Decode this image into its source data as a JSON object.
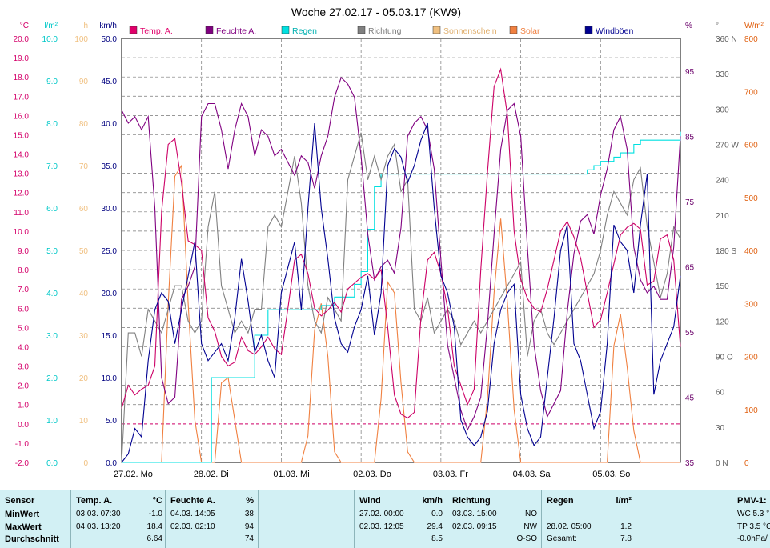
{
  "chart_data": {
    "type": "line",
    "title": "Woche 27.02.17 - 05.03.17 (KW9)",
    "x_start_label": "27.02. 00:00",
    "days": [
      "27.02. Mo",
      "28.02. Di",
      "01.03. Mi",
      "02.03. Do",
      "03.03. Fr",
      "04.03. Sa",
      "05.03. So"
    ],
    "axes": {
      "temp": {
        "unit": "°C",
        "min": -2.0,
        "max": 20.0,
        "ticks": [
          "20.0",
          "19.0",
          "18.0",
          "17.0",
          "16.0",
          "15.0",
          "14.0",
          "13.0",
          "12.0",
          "11.0",
          "10.0",
          "9.0",
          "8.0",
          "7.0",
          "6.0",
          "5.0",
          "4.0",
          "3.0",
          "2.0",
          "1.0",
          "0.0",
          "-1.0",
          "-2.0"
        ],
        "color": "#d4006a"
      },
      "rain": {
        "unit": "l/m²",
        "min": 0.0,
        "max": 10.0,
        "ticks": [
          "10.0",
          "9.0",
          "8.0",
          "7.0",
          "6.0",
          "5.0",
          "4.0",
          "3.0",
          "2.0",
          "1.0",
          "0.0"
        ],
        "color": "#00c8c8"
      },
      "sun": {
        "unit": "h",
        "min": 0,
        "max": 100,
        "ticks": [
          "100",
          "90",
          "80",
          "70",
          "60",
          "50",
          "40",
          "30",
          "20",
          "10",
          "0"
        ],
        "color": "#f0c080"
      },
      "wind": {
        "unit": "km/h",
        "min": 0.0,
        "max": 50.0,
        "ticks": [
          "50.0",
          "45.0",
          "40.0",
          "35.0",
          "30.0",
          "25.0",
          "20.0",
          "15.0",
          "10.0",
          "5.0",
          "0.0"
        ],
        "color": "#000080"
      },
      "humidity": {
        "unit": "%",
        "min": 35,
        "max": 100,
        "ticks": [
          "95",
          "85",
          "75",
          "65",
          "55",
          "45",
          "35"
        ],
        "color": "#6a006a"
      },
      "direction": {
        "unit": "°",
        "min": 0,
        "max": 360,
        "ticks": [
          "360 N",
          "330",
          "300",
          "270 W",
          "240",
          "210",
          "180 S",
          "150",
          "120",
          "90 O",
          "60",
          "30",
          "0 N"
        ],
        "color": "#606060"
      },
      "solar": {
        "unit": "W/m²",
        "min": 0,
        "max": 800,
        "ticks": [
          "800",
          "700",
          "600",
          "500",
          "400",
          "300",
          "200",
          "100",
          "0"
        ],
        "color": "#e06010"
      }
    },
    "legend": [
      {
        "name": "Temp. A.",
        "color": "#e0006a"
      },
      {
        "name": "Feuchte A.",
        "color": "#800080"
      },
      {
        "name": "Regen",
        "color": "#00e0e0"
      },
      {
        "name": "Richtung",
        "color": "#808080"
      },
      {
        "name": "Sonnenschein",
        "color": "#f0c080"
      },
      {
        "name": "Solar",
        "color": "#f08040"
      },
      {
        "name": "Windböen",
        "color": "#000090"
      }
    ],
    "series": [
      {
        "name": "Temp. A.",
        "color": "#cc0066",
        "axis": "temp",
        "x": [
          0,
          2,
          4,
          6,
          8,
          10,
          12,
          14,
          16,
          18,
          20,
          22,
          24,
          26,
          28,
          30,
          32,
          34,
          36,
          38,
          40,
          42,
          44,
          46,
          48,
          50,
          52,
          54,
          56,
          58,
          60,
          62,
          64,
          66,
          68,
          70,
          72,
          74,
          76,
          78,
          80,
          82,
          84,
          86,
          88,
          90,
          92,
          94,
          96,
          98,
          100,
          102,
          104,
          106,
          108,
          110,
          112,
          114,
          116,
          118,
          120,
          122,
          124,
          126,
          128,
          130,
          132,
          134,
          136,
          138,
          140,
          142,
          144,
          146,
          148,
          150,
          152,
          154,
          156,
          158,
          160,
          162,
          164,
          166,
          168
        ],
        "values": [
          0.8,
          2.0,
          1.5,
          1.8,
          2.0,
          3.0,
          11.0,
          14.5,
          14.8,
          12.5,
          9.5,
          9.3,
          9.0,
          5.5,
          4.8,
          3.5,
          3.0,
          3.2,
          4.5,
          3.8,
          3.6,
          4.0,
          4.5,
          3.9,
          3.6,
          6.0,
          8.5,
          8.8,
          7.8,
          6.0,
          5.6,
          5.9,
          6.3,
          5.8,
          7.0,
          7.3,
          7.6,
          7.8,
          7.5,
          8.0,
          5.0,
          1.5,
          0.5,
          0.3,
          0.6,
          5.5,
          8.5,
          8.9,
          7.8,
          6.0,
          3.0,
          2.0,
          1.0,
          1.8,
          8.0,
          13.0,
          17.5,
          18.4,
          16.0,
          10.0,
          7.5,
          6.5,
          6.0,
          5.8,
          7.0,
          8.5,
          10.0,
          10.5,
          9.7,
          8.6,
          6.8,
          5.0,
          5.4,
          6.8,
          8.3,
          9.8,
          10.2,
          10.4,
          10.1,
          7.2,
          7.4,
          9.6,
          9.8,
          8.5,
          4.0
        ]
      },
      {
        "name": "Feuchte A.",
        "color": "#800080",
        "axis": "humidity",
        "x": [
          0,
          2,
          4,
          6,
          8,
          10,
          12,
          14,
          16,
          18,
          20,
          22,
          24,
          26,
          28,
          30,
          32,
          34,
          36,
          38,
          40,
          42,
          44,
          46,
          48,
          50,
          52,
          54,
          56,
          58,
          60,
          62,
          64,
          66,
          68,
          70,
          72,
          74,
          76,
          78,
          80,
          82,
          84,
          86,
          88,
          90,
          92,
          94,
          96,
          98,
          100,
          102,
          104,
          106,
          108,
          110,
          112,
          114,
          116,
          118,
          120,
          122,
          124,
          126,
          128,
          130,
          132,
          134,
          136,
          138,
          140,
          142,
          144,
          146,
          148,
          150,
          152,
          154,
          156,
          158,
          160,
          162,
          164,
          166,
          168
        ],
        "values": [
          89,
          87,
          88,
          86,
          88,
          74,
          48,
          44,
          45,
          60,
          62,
          65,
          88,
          90,
          90,
          86,
          80,
          86,
          90,
          88,
          82,
          86,
          85,
          82,
          83,
          81,
          79,
          82,
          81,
          77,
          82,
          85,
          91,
          94,
          93,
          91,
          82,
          70,
          63,
          65,
          66,
          64,
          71,
          85,
          87,
          88,
          86,
          80,
          66,
          53,
          48,
          43,
          40,
          42,
          45,
          56,
          70,
          83,
          89,
          90,
          85,
          68,
          53,
          46,
          42,
          44,
          46,
          58,
          67,
          72,
          73,
          70,
          76,
          80,
          86,
          88,
          83,
          68,
          63,
          61,
          62,
          60,
          60,
          68,
          85
        ]
      },
      {
        "name": "Regen",
        "color": "#00e0e0",
        "axis": "rain",
        "x": [
          0,
          26,
          27,
          38,
          40,
          42,
          44,
          60,
          62,
          64,
          70,
          72,
          74,
          76,
          78,
          80,
          100,
          120,
          138,
          140,
          142,
          144,
          148,
          150,
          154,
          156,
          160,
          166,
          168
        ],
        "values": [
          0,
          0,
          2.0,
          2.0,
          3.0,
          3.0,
          3.6,
          3.7,
          3.7,
          3.9,
          4.2,
          4.5,
          5.5,
          6.5,
          6.8,
          6.8,
          6.8,
          6.8,
          6.8,
          6.9,
          7.0,
          7.1,
          7.2,
          7.3,
          7.5,
          7.6,
          7.6,
          7.6,
          7.8
        ]
      },
      {
        "name": "Richtung",
        "color": "#808080",
        "axis": "direction",
        "x": [
          0,
          2,
          4,
          6,
          8,
          10,
          12,
          14,
          16,
          18,
          20,
          22,
          24,
          26,
          28,
          30,
          32,
          34,
          36,
          38,
          40,
          42,
          44,
          46,
          48,
          50,
          52,
          54,
          56,
          58,
          60,
          62,
          64,
          66,
          68,
          70,
          72,
          74,
          76,
          78,
          80,
          82,
          84,
          86,
          88,
          90,
          92,
          94,
          96,
          98,
          100,
          102,
          104,
          106,
          108,
          110,
          112,
          114,
          116,
          118,
          120,
          122,
          124,
          126,
          128,
          130,
          132,
          134,
          136,
          138,
          140,
          142,
          144,
          146,
          148,
          150,
          152,
          154,
          156,
          158,
          160,
          162,
          164,
          166,
          168
        ],
        "values": [
          0,
          110,
          110,
          90,
          130,
          120,
          110,
          130,
          150,
          150,
          120,
          110,
          120,
          200,
          230,
          150,
          130,
          110,
          120,
          110,
          130,
          130,
          200,
          210,
          200,
          230,
          260,
          220,
          150,
          120,
          110,
          140,
          130,
          120,
          240,
          260,
          280,
          240,
          260,
          240,
          260,
          270,
          230,
          240,
          130,
          120,
          140,
          110,
          120,
          130,
          120,
          100,
          110,
          120,
          110,
          120,
          130,
          140,
          150,
          160,
          170,
          90,
          120,
          130,
          110,
          100,
          110,
          120,
          130,
          140,
          150,
          160,
          180,
          210,
          230,
          220,
          210,
          240,
          250,
          200,
          170,
          140,
          160,
          200,
          190
        ]
      },
      {
        "name": "Windböen",
        "color": "#000090",
        "axis": "wind",
        "x": [
          0,
          2,
          4,
          6,
          8,
          10,
          12,
          14,
          16,
          18,
          20,
          22,
          24,
          26,
          28,
          30,
          32,
          34,
          36,
          38,
          40,
          42,
          44,
          46,
          48,
          50,
          52,
          54,
          56,
          58,
          60,
          62,
          64,
          66,
          68,
          70,
          72,
          74,
          76,
          78,
          80,
          82,
          84,
          86,
          88,
          90,
          92,
          94,
          96,
          98,
          100,
          102,
          104,
          106,
          108,
          110,
          112,
          114,
          116,
          118,
          120,
          122,
          124,
          126,
          128,
          130,
          132,
          134,
          136,
          138,
          140,
          142,
          144,
          146,
          148,
          150,
          152,
          154,
          156,
          158,
          160,
          162,
          164,
          166,
          168
        ],
        "values": [
          0,
          1,
          4,
          3,
          12,
          18,
          20,
          19,
          14,
          18,
          22,
          26,
          14,
          12,
          13,
          14,
          12,
          17,
          24,
          19,
          13,
          15,
          12,
          10,
          20,
          23,
          26,
          18,
          30,
          40,
          30,
          24,
          17,
          14,
          13,
          16,
          18,
          22,
          15,
          20,
          35,
          37,
          36,
          33,
          35,
          38,
          40,
          30,
          22,
          20,
          16,
          5,
          3,
          2,
          3,
          6,
          14,
          18,
          20,
          21,
          8,
          4,
          2,
          3,
          10,
          17,
          25,
          28,
          14,
          12,
          8,
          4,
          6,
          14,
          28,
          26,
          25,
          20,
          28,
          34,
          8,
          12,
          14,
          16,
          22
        ]
      },
      {
        "name": "Solar",
        "color": "#f08040",
        "axis": "solar",
        "x": [
          0,
          2,
          4,
          6,
          8,
          10,
          12,
          14,
          16,
          18,
          20,
          22,
          24,
          26,
          28,
          30,
          32,
          34,
          36,
          38,
          40,
          42,
          44,
          46,
          48,
          50,
          52,
          54,
          56,
          58,
          60,
          62,
          64,
          66,
          68,
          70,
          72,
          74,
          76,
          78,
          80,
          82,
          84,
          86,
          88,
          90,
          92,
          94,
          96,
          98,
          100,
          102,
          104,
          106,
          108,
          110,
          112,
          114,
          116,
          118,
          120,
          122,
          124,
          126,
          128,
          130,
          132,
          134,
          136,
          138,
          140,
          142,
          144,
          146,
          148,
          150,
          152,
          154,
          156,
          158,
          160,
          162,
          164,
          166,
          168
        ],
        "values": [
          0,
          0,
          0,
          0,
          0,
          0,
          0,
          300,
          540,
          560,
          300,
          80,
          0,
          0,
          0,
          150,
          160,
          80,
          0,
          0,
          0,
          0,
          0,
          0,
          0,
          0,
          0,
          0,
          50,
          250,
          300,
          200,
          20,
          0,
          0,
          0,
          0,
          0,
          0,
          120,
          340,
          320,
          150,
          20,
          0,
          0,
          0,
          0,
          0,
          0,
          0,
          0,
          0,
          0,
          0,
          120,
          320,
          460,
          300,
          100,
          0,
          0,
          0,
          0,
          0,
          0,
          0,
          0,
          0,
          0,
          0,
          0,
          0,
          0,
          220,
          280,
          180,
          60,
          0,
          0,
          0,
          0,
          0,
          0,
          0
        ]
      }
    ]
  },
  "stats": {
    "sensor": {
      "header": "Sensor",
      "rows": [
        "MinWert",
        "MaxWert",
        "Durchschnitt"
      ]
    },
    "temp": {
      "header": "Temp. A.",
      "unit": "°C",
      "min_time": "03.03.   07:30",
      "min_val": "-1.0",
      "max_time": "04.03.   13:20",
      "max_val": "18.4",
      "avg_val": "6.64"
    },
    "humidity": {
      "header": "Feuchte A.",
      "unit": "%",
      "min_time": "04.03.   14:05",
      "min_val": "38",
      "max_time": "02.03.   02:10",
      "max_val": "94",
      "avg_val": "74"
    },
    "wind": {
      "header": "Wind",
      "unit": "km/h",
      "min_time": "27.02.   00:00",
      "min_val": "0.0",
      "max_time": "02.03.   12:05",
      "max_val": "29.4",
      "avg_val": "8.5"
    },
    "direction": {
      "header": "Richtung",
      "min_time": "03.03.   15:00",
      "min_val": "NO",
      "max_time": "02.03.   09:15",
      "max_val": "NW",
      "avg_val": "O-SO"
    },
    "rain": {
      "header": "Regen",
      "unit": "l/m²",
      "max_time": "28.02.   05:00",
      "max_val": "1.2",
      "total_label": "Gesamt:",
      "total_val": "7.8"
    },
    "pmv": {
      "header": "PMV-1:",
      "line1": "WC 5.3 °",
      "line2": "TP 3.5 °C",
      "line3": "-0.0hPa/"
    }
  }
}
